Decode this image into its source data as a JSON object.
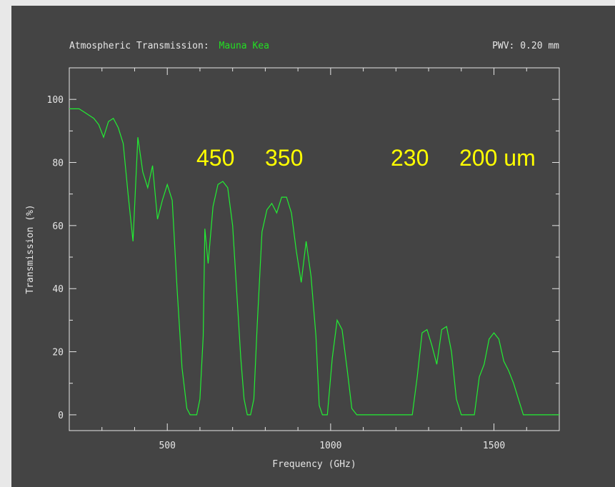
{
  "header": {
    "title_prefix": "Atmospheric Transmission:",
    "site": "Mauna Kea",
    "pwv": "PWV: 0.20 mm"
  },
  "colors": {
    "panel_bg": "#444444",
    "page_bg": "#e8e8e8",
    "axis": "#e6e6e6",
    "curve": "#22ee33",
    "site_text": "#22e022",
    "annotation": "#ffff00"
  },
  "chart_data": {
    "type": "line",
    "xlabel": "Frequency (GHz)",
    "ylabel": "Transmission (%)",
    "xlim": [
      200,
      1700
    ],
    "ylim": [
      -5,
      110
    ],
    "xticks": [
      500,
      1000,
      1500
    ],
    "yticks": [
      0,
      20,
      40,
      60,
      80,
      100
    ],
    "grid": false,
    "series": [
      {
        "x": [
          200,
          215,
          230,
          245,
          260,
          275,
          290,
          305,
          320,
          335,
          350,
          365,
          380,
          395,
          410,
          425,
          440,
          455,
          470,
          485,
          500,
          515,
          530,
          545,
          560,
          570,
          580,
          590,
          600,
          610,
          615,
          625,
          640,
          655,
          670,
          685,
          700,
          715,
          725,
          735,
          745,
          755,
          765,
          775,
          790,
          805,
          820,
          835,
          850,
          865,
          880,
          895,
          910,
          925,
          940,
          955,
          965,
          975,
          990,
          1005,
          1020,
          1035,
          1050,
          1065,
          1080,
          1100,
          1150,
          1200,
          1250,
          1265,
          1280,
          1295,
          1310,
          1325,
          1340,
          1355,
          1370,
          1385,
          1400,
          1420,
          1440,
          1455,
          1470,
          1485,
          1500,
          1515,
          1530,
          1545,
          1560,
          1575,
          1590,
          1610,
          1650,
          1700
        ],
        "y": [
          97,
          97,
          97,
          96,
          95,
          94,
          92,
          88,
          93,
          94,
          91,
          86,
          70,
          55,
          88,
          77,
          72,
          79,
          62,
          68,
          73,
          68,
          40,
          15,
          2,
          0,
          0,
          0,
          5,
          25,
          59,
          48,
          66,
          73,
          74,
          72,
          60,
          35,
          18,
          5,
          0,
          0,
          5,
          28,
          58,
          65,
          67,
          64,
          69,
          69,
          64,
          52,
          42,
          55,
          44,
          25,
          3,
          0,
          0,
          18,
          30,
          27,
          15,
          2,
          0,
          0,
          0,
          0,
          0,
          12,
          26,
          27,
          22,
          16,
          27,
          28,
          20,
          5,
          0,
          0,
          0,
          12,
          16,
          24,
          26,
          24,
          17,
          14,
          10,
          5,
          0,
          0,
          0,
          0
        ]
      }
    ],
    "annotations": [
      "450",
      "350",
      "230",
      "200 um"
    ]
  }
}
